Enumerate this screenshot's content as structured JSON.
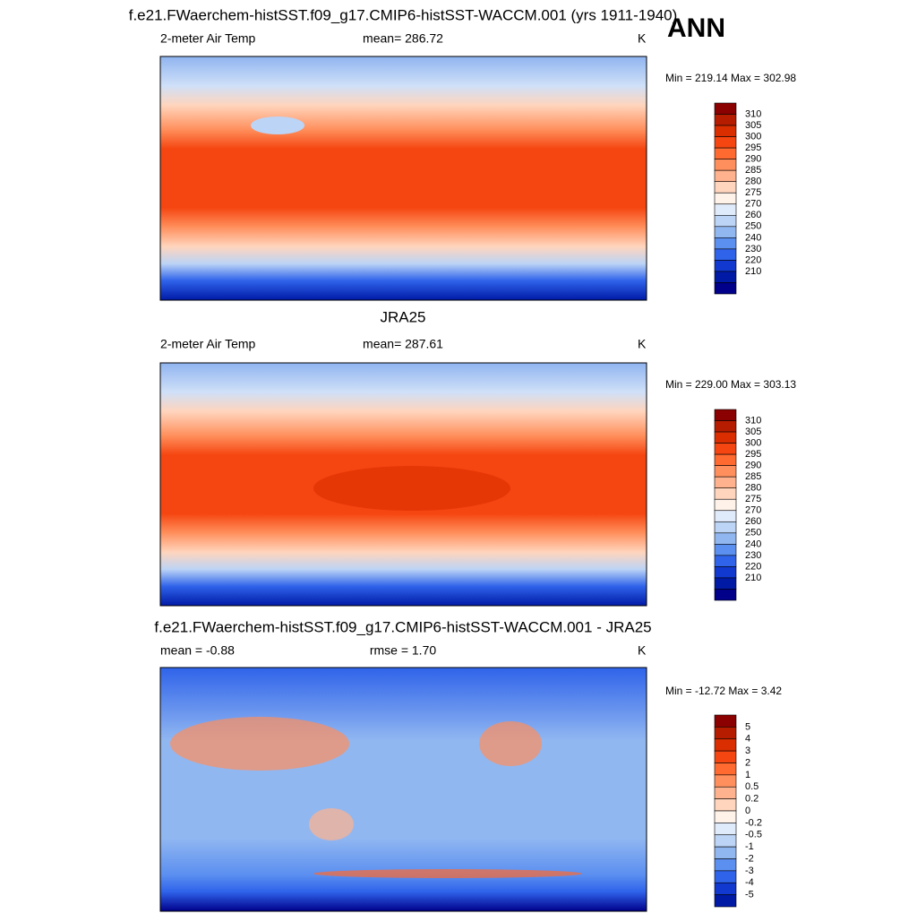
{
  "panels": [
    {
      "title": "f.e21.FWaerchem-histSST.f09_g17.CMIP6-histSST-WACCM.001 (yrs 1911-1940)",
      "left": "2-meter Air Temp",
      "center": "mean= 286.72",
      "right": "K",
      "minmax": "Min = 219.14 Max = 302.98",
      "colorbar": {
        "labels": [
          "310",
          "305",
          "300",
          "295",
          "290",
          "285",
          "280",
          "275",
          "270",
          "260",
          "250",
          "240",
          "230",
          "220",
          "210"
        ],
        "colors": [
          "#8b0000",
          "#b61d00",
          "#da2e00",
          "#f54510",
          "#ff6a30",
          "#ff8f5c",
          "#ffb28d",
          "#ffd5bd",
          "#fff2e8",
          "#dfeafb",
          "#bcd4f6",
          "#91b7f1",
          "#5b8ff0",
          "#2f63ea",
          "#1138cf",
          "#001aa6",
          "#00008a"
        ]
      }
    },
    {
      "title": "JRA25",
      "left": "2-meter Air Temp",
      "center": "mean= 287.61",
      "right": "K",
      "minmax": "Min = 229.00 Max = 303.13",
      "colorbar": {
        "labels": [
          "310",
          "305",
          "300",
          "295",
          "290",
          "285",
          "280",
          "275",
          "270",
          "260",
          "250",
          "240",
          "230",
          "220",
          "210"
        ],
        "colors": [
          "#8b0000",
          "#b61d00",
          "#da2e00",
          "#f54510",
          "#ff6a30",
          "#ff8f5c",
          "#ffb28d",
          "#ffd5bd",
          "#fff2e8",
          "#dfeafb",
          "#bcd4f6",
          "#91b7f1",
          "#5b8ff0",
          "#2f63ea",
          "#1138cf",
          "#001aa6",
          "#00008a"
        ]
      }
    },
    {
      "title": "f.e21.FWaerchem-histSST.f09_g17.CMIP6-histSST-WACCM.001 - JRA25",
      "left": "mean =  -0.88",
      "center": "rmse =   1.70",
      "right": "K",
      "minmax": "Min = -12.72 Max =   3.42",
      "colorbar": {
        "labels": [
          "5",
          "4",
          "3",
          "2",
          "1",
          "0.5",
          "0.2",
          "0",
          "-0.2",
          "-0.5",
          "-1",
          "-2",
          "-3",
          "-4",
          "-5"
        ],
        "colors": [
          "#8b0000",
          "#b61d00",
          "#da2e00",
          "#f54510",
          "#ff6a30",
          "#ff8f5c",
          "#ffb28d",
          "#ffd5bd",
          "#fff2e8",
          "#dfeafb",
          "#bcd4f6",
          "#91b7f1",
          "#5b8ff0",
          "#2f63ea",
          "#1138cf",
          "#001aa6"
        ]
      }
    }
  ],
  "season": "ANN"
}
